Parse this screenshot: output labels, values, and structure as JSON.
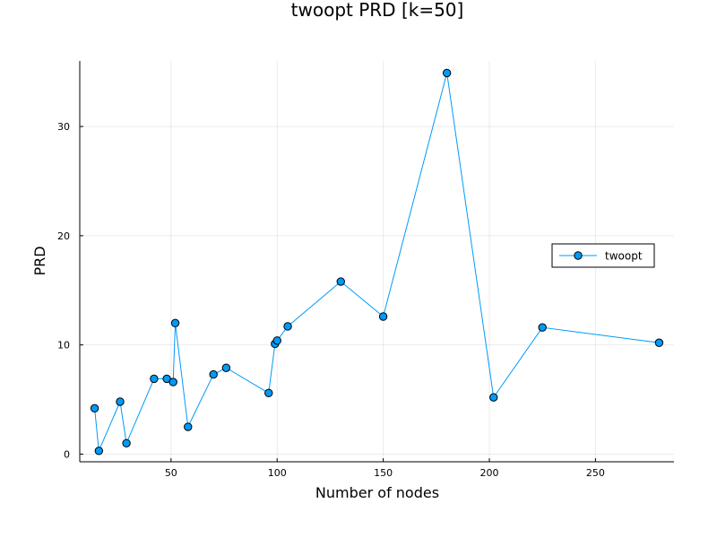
{
  "chart_data": {
    "type": "line",
    "title": "twoopt PRD [k=50]",
    "xlabel": "Number of nodes",
    "ylabel": "PRD",
    "xlim": [
      7,
      287
    ],
    "ylim": [
      -0.7,
      36
    ],
    "xticks": [
      50,
      100,
      150,
      200,
      250
    ],
    "yticks": [
      0,
      10,
      20,
      30
    ],
    "grid": true,
    "legend_position": "right",
    "series": [
      {
        "name": "twoopt",
        "color": "#009AF9",
        "marker": "circle",
        "x": [
          14,
          16,
          26,
          29,
          42,
          48,
          51,
          52,
          58,
          70,
          76,
          96,
          99,
          100,
          105,
          130,
          150,
          180,
          202,
          225,
          280
        ],
        "y": [
          4.2,
          0.3,
          4.8,
          1.0,
          6.9,
          6.9,
          6.6,
          12.0,
          2.5,
          7.3,
          7.9,
          5.6,
          10.1,
          10.4,
          11.7,
          15.8,
          12.6,
          34.9,
          5.2,
          11.6,
          10.2
        ]
      }
    ]
  }
}
